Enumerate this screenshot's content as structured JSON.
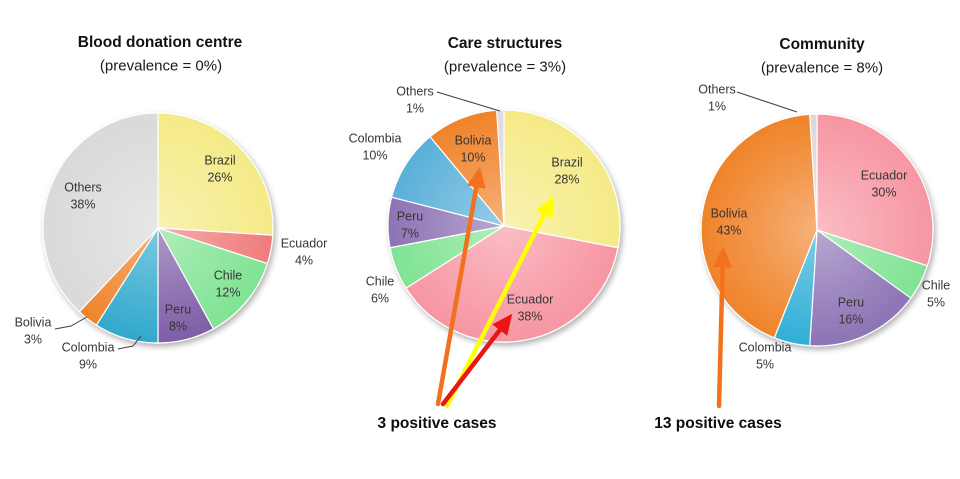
{
  "chart_data": [
    {
      "type": "pie",
      "title": "Blood donation centre",
      "subtitle": "(prevalence = 0%)",
      "slices": [
        {
          "name": "Brazil",
          "pct": 26,
          "pct_label": "26%",
          "color": "#F5EA85"
        },
        {
          "name": "Ecuador",
          "pct": 4,
          "pct_label": "4%",
          "color": "#F07B7B"
        },
        {
          "name": "Chile",
          "pct": 12,
          "pct_label": "12%",
          "color": "#7FE392"
        },
        {
          "name": "Peru",
          "pct": 8,
          "pct_label": "8%",
          "color": "#7D5CA6"
        },
        {
          "name": "Colombia",
          "pct": 9,
          "pct_label": "9%",
          "color": "#2FA8CC"
        },
        {
          "name": "Bolivia",
          "pct": 3,
          "pct_label": "3%",
          "color": "#F08228"
        },
        {
          "name": "Others",
          "pct": 38,
          "pct_label": "38%",
          "color": "#D9D9D9"
        }
      ],
      "annotation": null
    },
    {
      "type": "pie",
      "title": "Care structures",
      "subtitle": "(prevalence = 3%)",
      "slices": [
        {
          "name": "Brazil",
          "pct": 28,
          "pct_label": "28%",
          "color": "#F5EA85"
        },
        {
          "name": "Ecuador",
          "pct": 38,
          "pct_label": "38%",
          "color": "#F795A2"
        },
        {
          "name": "Chile",
          "pct": 6,
          "pct_label": "6%",
          "color": "#7FE392"
        },
        {
          "name": "Peru",
          "pct": 7,
          "pct_label": "7%",
          "color": "#8C72B4"
        },
        {
          "name": "Colombia",
          "pct": 10,
          "pct_label": "10%",
          "color": "#58AFD8"
        },
        {
          "name": "Bolivia",
          "pct": 10,
          "pct_label": "10%",
          "color": "#F08228"
        },
        {
          "name": "Others",
          "pct": 1,
          "pct_label": "1%",
          "color": "#DDDADF"
        }
      ],
      "annotation": {
        "text": "3 positive cases",
        "arrows": [
          {
            "target": "Bolivia",
            "color": "#F2711C"
          },
          {
            "target": "Brazil",
            "color": "#FFFF00"
          },
          {
            "target": "Ecuador",
            "color": "#E91616"
          }
        ]
      }
    },
    {
      "type": "pie",
      "title": "Community",
      "subtitle": "(prevalence = 8%)",
      "slices": [
        {
          "name": "Ecuador",
          "pct": 30,
          "pct_label": "30%",
          "color": "#F795A2"
        },
        {
          "name": "Chile",
          "pct": 5,
          "pct_label": "5%",
          "color": "#7FE392"
        },
        {
          "name": "Peru",
          "pct": 16,
          "pct_label": "16%",
          "color": "#8C72B4"
        },
        {
          "name": "Colombia",
          "pct": 5,
          "pct_label": "5%",
          "color": "#2FAED6"
        },
        {
          "name": "Bolivia",
          "pct": 43,
          "pct_label": "43%",
          "color": "#F08228"
        },
        {
          "name": "Others",
          "pct": 1,
          "pct_label": "1%",
          "color": "#D9D9D9"
        }
      ],
      "annotation": {
        "text": "13 positive cases",
        "arrows": [
          {
            "target": "Bolivia",
            "color": "#F2711C"
          }
        ]
      }
    }
  ]
}
